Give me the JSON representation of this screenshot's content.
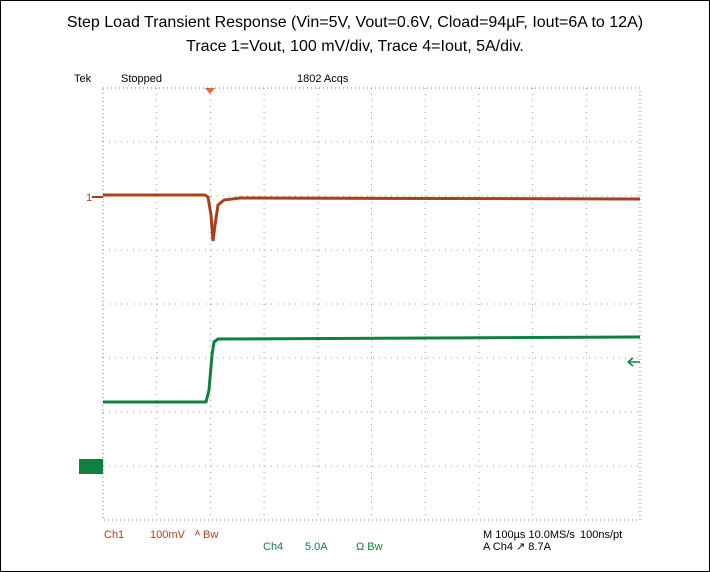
{
  "caption": {
    "line1": "Step Load Transient Response (Vin=5V, Vout=0.6V, Cload=94µF, Iout=6A to 12A)",
    "line2": "Trace 1=Vout, 100 mV/div, Trace 4=Iout, 5A/div."
  },
  "scope": {
    "top": {
      "brand": "Tek",
      "state": "Stopped",
      "acqs": "1802 Acqs"
    },
    "ch1": {
      "name": "Ch1",
      "scale": "100mV",
      "bw": "ᴬ Bw",
      "marker": "1"
    },
    "ch4": {
      "name": "Ch4",
      "scale": "5.0A",
      "bw": "Ω Bw"
    },
    "timebase": "M 100µs 10.0MS/s",
    "resolution": "100ns/pt",
    "trigger": "A Ch4 ↗ 8.7A"
  }
}
